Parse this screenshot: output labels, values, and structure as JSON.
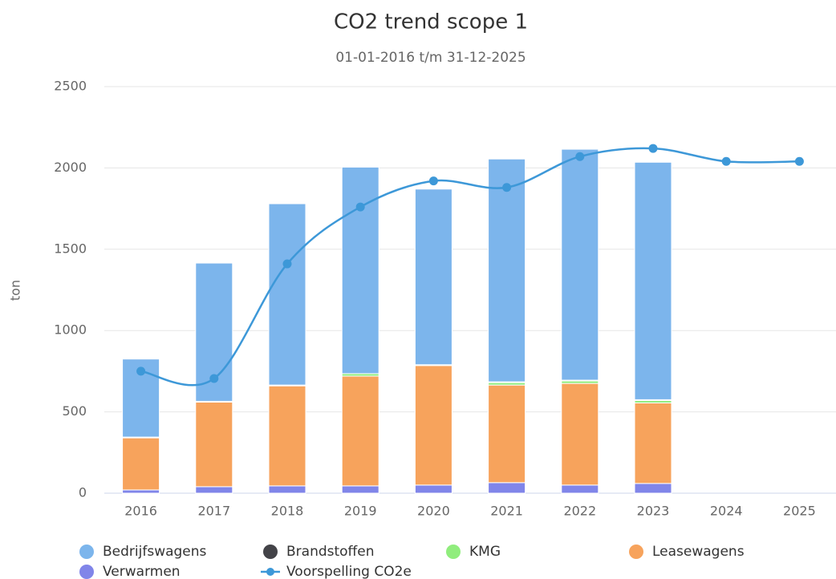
{
  "chart_data": {
    "type": "bar",
    "stacked": true,
    "title": "CO2 trend scope 1",
    "subtitle": "01-01-2016 t/m 31-12-2025",
    "y_label": "ton",
    "categories": [
      "2016",
      "2017",
      "2018",
      "2019",
      "2020",
      "2021",
      "2022",
      "2023",
      "2024",
      "2025"
    ],
    "ylim": [
      0,
      2500
    ],
    "yticks": [
      0,
      500,
      1000,
      1500,
      2000,
      2500
    ],
    "grid": true,
    "series": [
      {
        "name": "Verwarmen",
        "color": "#8085e9",
        "values": [
          20,
          40,
          45,
          45,
          50,
          65,
          50,
          60,
          null,
          null
        ]
      },
      {
        "name": "Leasewagens",
        "color": "#f7a35c",
        "values": [
          320,
          520,
          615,
          675,
          735,
          600,
          625,
          495,
          null,
          null
        ]
      },
      {
        "name": "KMG",
        "color": "#90ed7d",
        "values": [
          5,
          5,
          5,
          15,
          5,
          15,
          15,
          15,
          null,
          null
        ]
      },
      {
        "name": "Brandstoffen",
        "color": "#434348",
        "values": [
          0,
          0,
          0,
          0,
          0,
          5,
          5,
          5,
          null,
          null
        ]
      },
      {
        "name": "Bedrijfswagens",
        "color": "#7cb5ec",
        "values": [
          480,
          850,
          1115,
          1270,
          1080,
          1370,
          1420,
          1460,
          null,
          null
        ]
      },
      {
        "name": "Voorspelling CO2e",
        "color": "#3d98d8",
        "type": "line",
        "values": [
          750,
          705,
          1410,
          1760,
          1920,
          1880,
          2070,
          2120,
          2040,
          2040
        ]
      }
    ],
    "legend_order": [
      4,
      3,
      2,
      1,
      0,
      5
    ]
  }
}
